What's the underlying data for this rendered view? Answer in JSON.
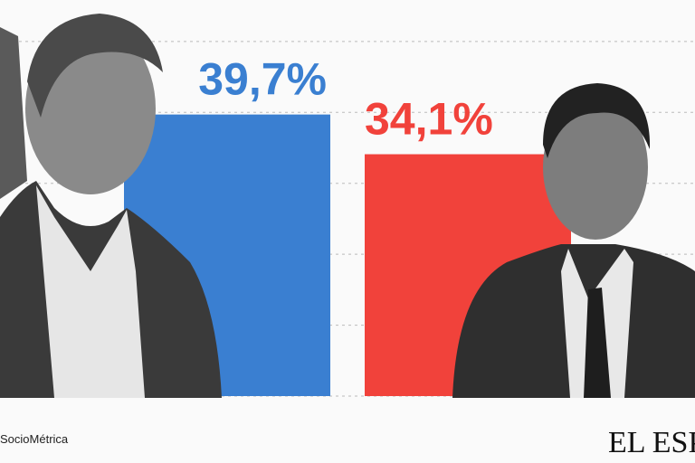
{
  "chart_data": {
    "type": "bar",
    "categories": [
      null,
      null
    ],
    "values": [
      39.7,
      34.1
    ],
    "value_labels": [
      "39,7%",
      "34,1%"
    ],
    "colors": [
      "#3a7fd1",
      "#f1423b"
    ],
    "ylim": [
      0,
      51
    ],
    "yticks": [
      0,
      10,
      20,
      30,
      40,
      50
    ],
    "grid": true,
    "source": "SocioMétrica",
    "logo": "EL ESP"
  }
}
